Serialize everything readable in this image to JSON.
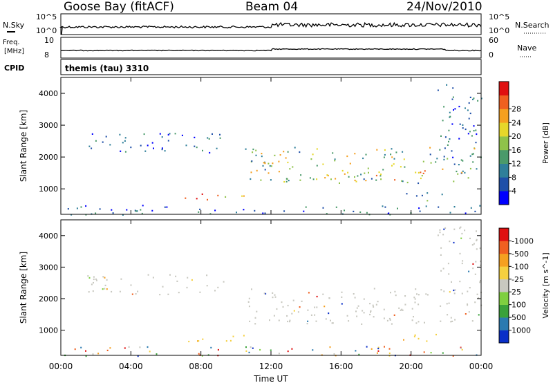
{
  "header": {
    "station": "Goose Bay (fitACF)",
    "beam": "Beam 04",
    "date": "24/Nov/2010"
  },
  "noise_panel": {
    "left_label": "N.Sky",
    "right_label": "N.Search",
    "left_ticks": [
      "10^5",
      "10^0"
    ],
    "right_ticks": [
      "10^5",
      "10^0"
    ],
    "line_color": "#000000"
  },
  "freq_panel": {
    "left_label_top": "Freq.",
    "left_label_units": "[MHz]",
    "right_label": "Nave",
    "left_ticks": [
      "10",
      "8"
    ],
    "right_ticks": [
      "60",
      "0"
    ]
  },
  "cpid_panel": {
    "label": "CPID",
    "value": "themis (tau) 3310"
  },
  "chart_data": [
    {
      "type": "heatmap",
      "title": "Power",
      "ylabel": "Slant Range [km]",
      "xlabel": "Time UT",
      "ylim": [
        200,
        4500
      ],
      "y_ticks": [
        1000,
        2000,
        3000,
        4000
      ],
      "x_ticks": [
        "00:00",
        "04:00",
        "08:00",
        "12:00",
        "16:00",
        "20:00",
        "00:00"
      ],
      "x_tick_hours": [
        0,
        4,
        8,
        12,
        16,
        20,
        24
      ],
      "colorbar": {
        "label": "Power [dB]",
        "ticks": [
          "4",
          "8",
          "12",
          "16",
          "20",
          "24",
          "28"
        ],
        "colors": [
          "#0000ff",
          "#1f4fa8",
          "#2f7f9a",
          "#4a9a6a",
          "#8fc24a",
          "#e6d72a",
          "#f5a020",
          "#f06020",
          "#e01010"
        ]
      },
      "regions": [
        {
          "t0": 6.2,
          "t1": 10.5,
          "r0": 650,
          "r1": 880,
          "level": "high"
        },
        {
          "t0": 1.5,
          "t1": 9.3,
          "r0": 2150,
          "r1": 2800,
          "level": "low"
        },
        {
          "t0": 10.5,
          "t1": 24,
          "r0": 1200,
          "r1": 2350,
          "level": "mid"
        },
        {
          "t0": 15.0,
          "t1": 21.0,
          "r0": 1300,
          "r1": 1600,
          "level": "high"
        },
        {
          "t0": 19.0,
          "t1": 22.0,
          "r0": 650,
          "r1": 900,
          "level": "mid"
        },
        {
          "t0": 0,
          "t1": 24,
          "r0": 200,
          "r1": 500,
          "level": "low"
        },
        {
          "t0": 21.5,
          "t1": 24,
          "r0": 2000,
          "r1": 4300,
          "level": "low"
        }
      ]
    },
    {
      "type": "heatmap",
      "title": "Velocity",
      "ylabel": "Slant Range [km]",
      "xlabel": "Time UT",
      "ylim": [
        200,
        4500
      ],
      "y_ticks": [
        1000,
        2000,
        3000,
        4000
      ],
      "x_ticks": [
        "00:00",
        "04:00",
        "08:00",
        "12:00",
        "16:00",
        "20:00",
        "00:00"
      ],
      "x_tick_hours": [
        0,
        4,
        8,
        12,
        16,
        20,
        24
      ],
      "colorbar": {
        "label": "Velocity [m s^-1]",
        "ticks": [
          "1000",
          "500",
          "100",
          "25",
          "-25",
          "-100",
          "-500",
          "-1000"
        ],
        "colors": [
          "#0a2fc8",
          "#2a7ab0",
          "#3aa23a",
          "#7fd040",
          "#c8c8c0",
          "#f5d040",
          "#f5a020",
          "#f06020",
          "#e01010"
        ]
      },
      "regions": [
        {
          "t0": 6.2,
          "t1": 10.5,
          "r0": 650,
          "r1": 880,
          "level": "orange"
        },
        {
          "t0": 1.5,
          "t1": 9.3,
          "r0": 2150,
          "r1": 2800,
          "level": "grey"
        },
        {
          "t0": 10.5,
          "t1": 24,
          "r0": 1200,
          "r1": 2350,
          "level": "grey"
        },
        {
          "t0": 19.0,
          "t1": 22.0,
          "r0": 650,
          "r1": 900,
          "level": "orange"
        },
        {
          "t0": 0,
          "t1": 24,
          "r0": 200,
          "r1": 500,
          "level": "mixed"
        },
        {
          "t0": 21.5,
          "t1": 24,
          "r0": 2000,
          "r1": 4300,
          "level": "grey"
        }
      ]
    }
  ]
}
